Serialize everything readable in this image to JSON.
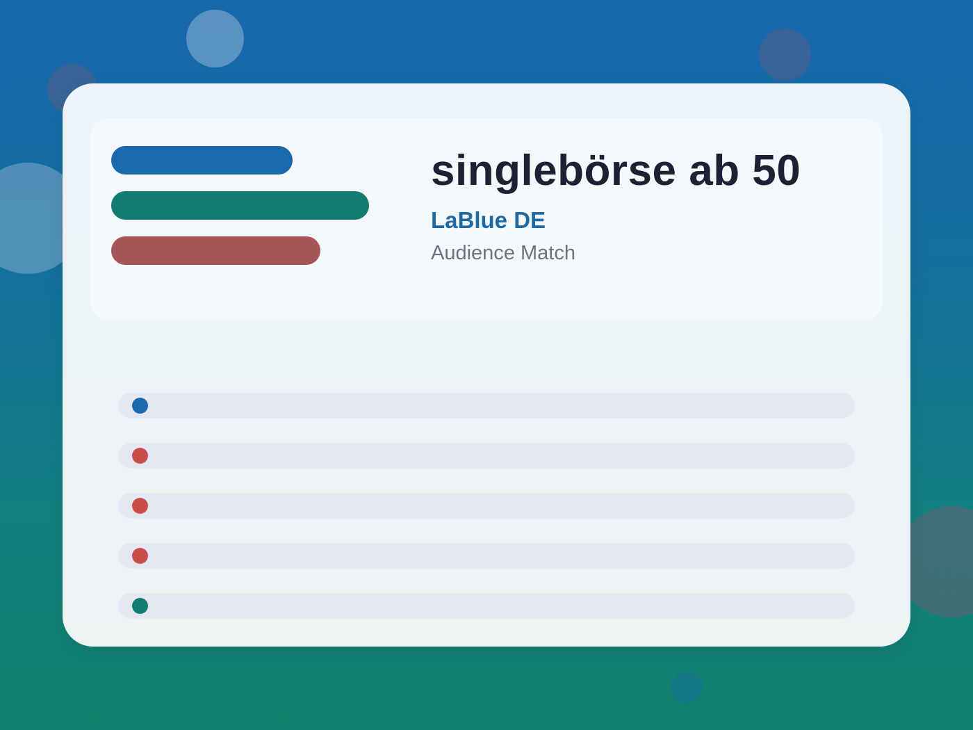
{
  "colors": {
    "blue": "#1a68ae",
    "teal": "#107d70",
    "red": "#a65558",
    "dot_red": "#cb4d49",
    "title": "#1c2233",
    "subtitle": "#1f6aa5",
    "caption": "#6b7280"
  },
  "header": {
    "title": "singlebörse ab 50",
    "subtitle": "LaBlue DE",
    "caption": "Audience Match"
  },
  "legend_bars": [
    {
      "color": "blue"
    },
    {
      "color": "teal"
    },
    {
      "color": "red"
    }
  ],
  "list": {
    "items": [
      {
        "dot_color": "blue"
      },
      {
        "dot_color": "red"
      },
      {
        "dot_color": "red"
      },
      {
        "dot_color": "red"
      },
      {
        "dot_color": "teal"
      }
    ]
  }
}
